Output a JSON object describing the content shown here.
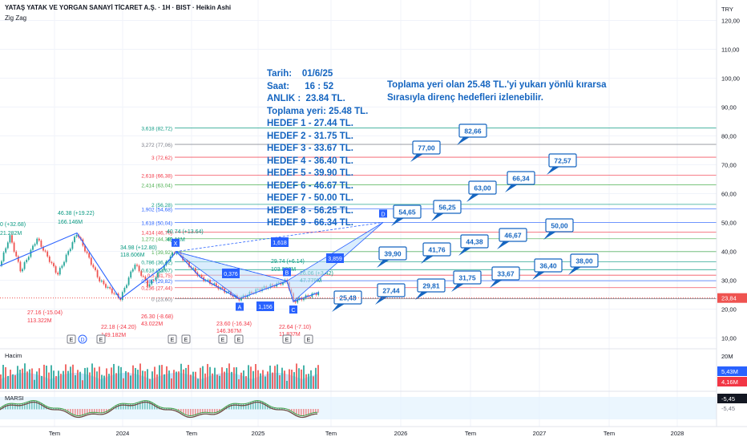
{
  "header": {
    "symbol_line": "YATAŞ YATAK VE YORGAN SANAYİ TİCARET A.Ş. · 1H · BIST · Heikin Ashi",
    "indicator": "Zig Zag",
    "currency": "TRY"
  },
  "notes": {
    "lines": [
      "Tarih:    01/6/25",
      "Saat:      16 : 52",
      "ANLIK :  23.84 TL.",
      "Toplama yeri: 25.48 TL.",
      "HEDEF 1 - 27.44 TL.",
      "HEDEF 2 - 31.75 TL.",
      "HEDEF 3 - 33.67 TL.",
      "HEDEF 4 - 36.40 TL.",
      "HEDEF 5 - 39.90 TL.",
      "HEDEF 6 - 46.67 TL.",
      "HEDEF 7 - 50.00 TL.",
      "HEDEF 8 - 56.25 TL.",
      "HEDEF 9 - 66.34 TL."
    ],
    "comment_1": "Toplama yeri olan 25.48 TL.'yi yukarı yönlü kırarsa",
    "comment_2": "Sırasıyla direnç hedefleri izlenebilir."
  },
  "panes": {
    "volume_label": "Hacim",
    "rsi_label": "MARSI"
  },
  "colors": {
    "up": "#26a69a",
    "down": "#ef5350",
    "target_box": "#1565c0",
    "fib_blue": "#2962ff",
    "pattern_fill": "#bbdefb",
    "price_tag": "#ef5350",
    "notes_text": "#1565c0"
  },
  "chart_data": {
    "type": "candlestick",
    "price_axis": {
      "ticks": [
        120,
        110,
        100,
        90,
        80,
        70,
        60,
        50,
        40,
        30,
        20,
        10
      ],
      "labels": [
        "120,00",
        "110,00",
        "100,00",
        "90,00",
        "80,00",
        "70,00",
        "60,00",
        "50,00",
        "40,00",
        "30,00",
        "20,00",
        "10,00"
      ]
    },
    "time_axis": [
      "Tem",
      "2024",
      "Tem",
      "2025",
      "Tem",
      "2026",
      "Tem",
      "2027",
      "Tem",
      "2028"
    ],
    "last_price": {
      "value": 23.84,
      "label": "23,84"
    },
    "targets": [
      {
        "value": 25.48,
        "label": "25,48"
      },
      {
        "value": 27.44,
        "label": "27,44"
      },
      {
        "value": 29.81,
        "label": "29,81"
      },
      {
        "value": 31.75,
        "label": "31,75"
      },
      {
        "value": 33.67,
        "label": "33,67"
      },
      {
        "value": 36.4,
        "label": "36,40"
      },
      {
        "value": 38.0,
        "label": "38,00"
      },
      {
        "value": 39.9,
        "label": "39,90"
      },
      {
        "value": 41.76,
        "label": "41,76"
      },
      {
        "value": 44.38,
        "label": "44,38"
      },
      {
        "value": 46.67,
        "label": "46,67"
      },
      {
        "value": 50.0,
        "label": "50,00"
      },
      {
        "value": 54.65,
        "label": "54,65"
      },
      {
        "value": 56.25,
        "label": "56,25"
      },
      {
        "value": 63.0,
        "label": "63,00"
      },
      {
        "value": 66.34,
        "label": "66,34"
      },
      {
        "value": 72.57,
        "label": "72,57"
      },
      {
        "value": 77.0,
        "label": "77,00"
      },
      {
        "value": 82.66,
        "label": "82,66"
      }
    ],
    "fib_levels": [
      {
        "ratio": "3,618",
        "value": 82.72,
        "label": "3,618 (82,72)",
        "color": "#089981"
      },
      {
        "ratio": "3,272",
        "value": 77.06,
        "label": "3,272 (77,06)",
        "color": "#787b86"
      },
      {
        "ratio": "3",
        "value": 72.62,
        "label": "3 (72,62)",
        "color": "#f23645"
      },
      {
        "ratio": "2,618",
        "value": 66.38,
        "label": "2,618 (66,38)",
        "color": "#f23645"
      },
      {
        "ratio": "2,414",
        "value": 63.04,
        "label": "2,414 (63,04)",
        "color": "#4caf50"
      },
      {
        "ratio": "2",
        "value": 56.28,
        "label": "2 (56,28)",
        "color": "#089981"
      },
      {
        "ratio": "1,902",
        "value": 54.68,
        "label": "1,902 (54,68)",
        "color": "#2962ff"
      },
      {
        "ratio": "1,618",
        "value": 50.04,
        "label": "1,618 (50,04)",
        "color": "#2962ff"
      },
      {
        "ratio": "1,414",
        "value": 46.7,
        "label": "1,414 (46,70)",
        "color": "#f23645"
      },
      {
        "ratio": "1,272",
        "value": 44.38,
        "label": "1,272 (44,38)",
        "color": "#4caf50"
      },
      {
        "ratio": "1",
        "value": 39.92,
        "label": "1 (39,92)",
        "color": "#4caf50"
      },
      {
        "ratio": "0,786",
        "value": 36.42,
        "label": "0,786 (36,42)",
        "color": "#089981"
      },
      {
        "ratio": "0,618",
        "value": 33.67,
        "label": "0,618 (33,67)",
        "color": "#089981"
      },
      {
        "ratio": "0,5",
        "value": 31.75,
        "label": "0,5 (31,75)",
        "color": "#f23645"
      },
      {
        "ratio": "0,382",
        "value": 29.82,
        "label": "0,382 (29,82)",
        "color": "#2962ff"
      },
      {
        "ratio": "0,236",
        "value": 27.44,
        "label": "0,236 (27,44)",
        "color": "#f23645"
      },
      {
        "ratio": "0",
        "value": 23.6,
        "label": "0 (23,60)",
        "color": "#787b86"
      }
    ],
    "pattern_points": [
      {
        "label": "X",
        "value": 39.92
      },
      {
        "label": "A",
        "value": 23.6
      },
      {
        "label": "B",
        "value": 29.74
      },
      {
        "label": "C",
        "value": 22.64
      },
      {
        "label": "D",
        "value": 50.04
      }
    ],
    "pattern_ratios": [
      "0,376",
      "1,156",
      "3,859",
      "1,618"
    ],
    "zigzag_labels": [
      {
        "text": "0 (+32.68)",
        "color": "#089981"
      },
      {
        "text": "21.282M",
        "color": "#089981"
      },
      {
        "text": "46.38 (+19.22)",
        "color": "#089981"
      },
      {
        "text": "166.146M",
        "color": "#089981"
      },
      {
        "text": "27.16 (-15.04)",
        "color": "#f23645"
      },
      {
        "text": "113.322M",
        "color": "#f23645"
      },
      {
        "text": "34.98 (+12.80)",
        "color": "#089981"
      },
      {
        "text": "118.606M",
        "color": "#089981"
      },
      {
        "text": "22.18 (-24.20)",
        "color": "#f23645"
      },
      {
        "text": "149.182M",
        "color": "#f23645"
      },
      {
        "text": "40.74 (+13.64)",
        "color": "#089981"
      },
      {
        "text": "49.11M",
        "color": "#089981"
      },
      {
        "text": "26.30 (-8.68)",
        "color": "#f23645"
      },
      {
        "text": "43.022M",
        "color": "#f23645"
      },
      {
        "text": "23.60 (-16.34)",
        "color": "#f23645"
      },
      {
        "text": "146.367M",
        "color": "#f23645"
      },
      {
        "text": "29.74 (+6.14)",
        "color": "#089981"
      },
      {
        "text": "103.802M",
        "color": "#089981"
      },
      {
        "text": "22.64 (-7.10)",
        "color": "#f23645"
      },
      {
        "text": "11.837M",
        "color": "#f23645"
      },
      {
        "text": "26.06 (+3.42)",
        "color": "#089981"
      },
      {
        "text": "47.779M",
        "color": "#089981"
      }
    ],
    "events": [
      "E",
      "D",
      "E",
      "E",
      "E",
      "E",
      "E",
      "E",
      "E"
    ],
    "volume_axis": {
      "top_label": "20M",
      "values": [
        {
          "label": "5,43M",
          "color": "#2962ff"
        },
        {
          "label": "4,16M",
          "color": "#f23645"
        }
      ]
    },
    "rsi_axis": {
      "values": [
        {
          "label": "-5,45",
          "color": "#131722"
        },
        {
          "label": "-5,45",
          "color": "#787b86"
        }
      ]
    }
  }
}
